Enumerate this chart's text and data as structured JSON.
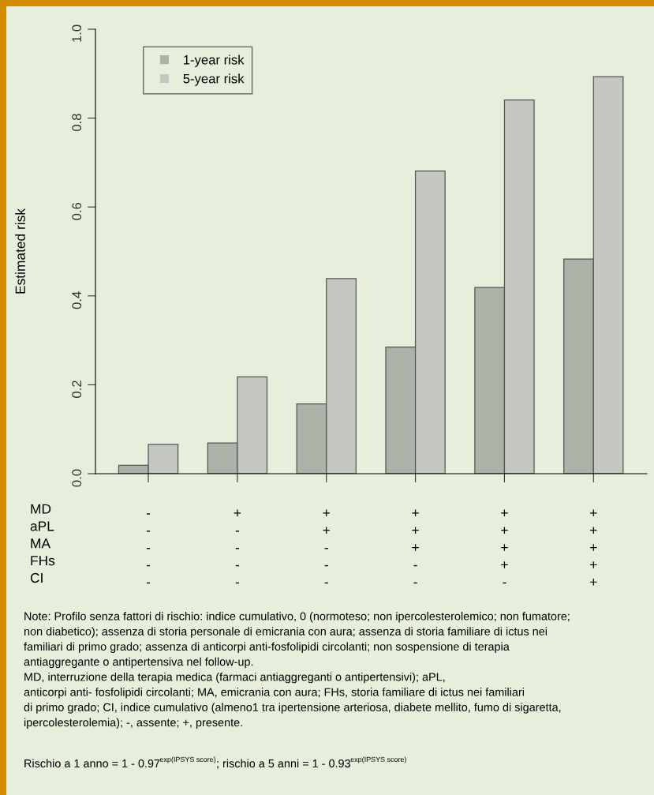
{
  "chart_data": {
    "type": "bar",
    "ylabel": "Estimated risk",
    "categories": [
      "-\n-\n-\n-\n-",
      "+\n-\n-\n-\n-",
      "+\n+\n-\n-\n-",
      "+\n+\n+\n-\n-",
      "+\n+\n+\n+\n-",
      "+\n+\n+\n+\n+"
    ],
    "series": [
      {
        "name": "1-year risk",
        "color": "#adb2a8",
        "values": [
          0.019,
          0.069,
          0.157,
          0.285,
          0.419,
          0.483
        ]
      },
      {
        "name": "5-year risk",
        "color": "#c3c7bf",
        "values": [
          0.066,
          0.218,
          0.439,
          0.681,
          0.841,
          0.893
        ]
      }
    ],
    "ylim": [
      0,
      1
    ],
    "yticks": [
      {
        "value": 0,
        "label": "0.0"
      },
      0.2,
      0.4,
      0.6,
      0.8,
      {
        "value": 1,
        "label": "1.0"
      }
    ],
    "grid": false,
    "legend": "top left",
    "annotations": [
      "MD\naPL\nMA\nFHs\nCI",
      "Note: Profilo senza fattori di rischio: indice cumulativo, 0 (normoteso; non ipercolesterolemico; non fumatore;\nnon diabetico); assenza di storia personale di emicrania con aura; assenza di storia familiare di ictus nei\nfamiliari di primo grado; assenza di anticorpi anti-fosfolipidi circolanti; non sospensione di terapia\nantiaggregante o antipertensiva nel follow-up.\nMD, interruzione della terapia medica (farmaci antiaggreganti o antipertensivi); aPL,\nanticorpi anti- fosfolipidi circolanti; MA, emicrania con aura; FHs, storia familiare di ictus nei familiari\ndi primo grado; CI, indice cumulativo (almeno1 tra ipertensione arteriosa, diabete mellito, fumo di sigaretta,\nipercolesterolemia); -, assente; +, presente.",
      "Rischio a 1 anno = 1 - 0.97$^{exp(IPSYS score)}$; rischio a 5 anni = 1 - 0.93$^{exp(IPSYS score)}$"
    ]
  }
}
